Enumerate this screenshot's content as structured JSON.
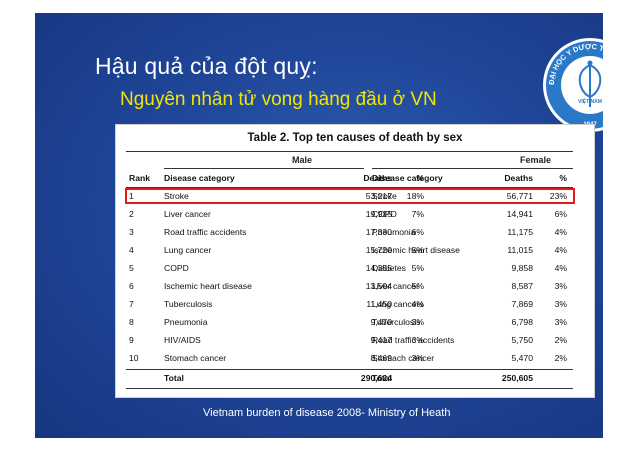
{
  "slide": {
    "title": "Hậu quả của đột quỵ:",
    "subtitle": "Nguyên nhân tử vong hàng đầu ở VN",
    "logo_text": "ĐẠI HỌC Y DƯỢC THÀNH PHỐ HỒ CHÍ MINH",
    "logo_country": "VIỆT NAM",
    "logo_year": "1947",
    "footer": "Vietnam burden of disease 2008- Ministry of Heath"
  },
  "table": {
    "title": "Table 2. Top ten causes of death by sex",
    "group_male": "Male",
    "group_female": "Female",
    "headers": {
      "rank": "Rank",
      "category_male": "Disease category",
      "deaths_male": "Deaths",
      "pct_male": "%",
      "category_female": "Disease category",
      "deaths_female": "Deaths",
      "pct_female": "%"
    },
    "rows": [
      {
        "rank": "1",
        "male_cat": "Stroke",
        "male_deaths": "53,217",
        "male_pct": "18%",
        "female_cat": "Stroke",
        "female_deaths": "56,771",
        "female_pct": "23%"
      },
      {
        "rank": "2",
        "male_cat": "Liver cancer",
        "male_deaths": "19,915",
        "male_pct": "7%",
        "female_cat": "COPD",
        "female_deaths": "14,941",
        "female_pct": "6%"
      },
      {
        "rank": "3",
        "male_cat": "Road traffic accidents",
        "male_deaths": "17,330",
        "male_pct": "6%",
        "female_cat": "Pneumonia",
        "female_deaths": "11,175",
        "female_pct": "4%"
      },
      {
        "rank": "4",
        "male_cat": "Lung cancer",
        "male_deaths": "15,720",
        "male_pct": "5%",
        "female_cat": "Ischemic heart disease",
        "female_deaths": "11,015",
        "female_pct": "4%"
      },
      {
        "rank": "5",
        "male_cat": "COPD",
        "male_deaths": "14,355",
        "male_pct": "5%",
        "female_cat": "Diabetes",
        "female_deaths": "9,858",
        "female_pct": "4%"
      },
      {
        "rank": "6",
        "male_cat": "Ischemic heart disease",
        "male_deaths": "13,504",
        "male_pct": "5%",
        "female_cat": "Liver cancer",
        "female_deaths": "8,587",
        "female_pct": "3%"
      },
      {
        "rank": "7",
        "male_cat": "Tuberculosis",
        "male_deaths": "11,450",
        "male_pct": "4%",
        "female_cat": "Lung cancers",
        "female_deaths": "7,869",
        "female_pct": "3%"
      },
      {
        "rank": "8",
        "male_cat": "Pneumonia",
        "male_deaths": "9,470",
        "male_pct": "3%",
        "female_cat": "Tuberculosis",
        "female_deaths": "6,798",
        "female_pct": "3%"
      },
      {
        "rank": "9",
        "male_cat": "HIV/AIDS",
        "male_deaths": "9,417",
        "male_pct": "3%",
        "female_cat": "Road traffic accidents",
        "female_deaths": "5,750",
        "female_pct": "2%"
      },
      {
        "rank": "10",
        "male_cat": "Stomach cancer",
        "male_deaths": "8,469",
        "male_pct": "3%",
        "female_cat": "Stomach cancer",
        "female_deaths": "5,470",
        "female_pct": "2%"
      }
    ],
    "total": {
      "label_male": "Total",
      "deaths_male": "290,624",
      "label_female": "Total",
      "deaths_female": "250,605"
    }
  },
  "colors": {
    "background": "#20479a",
    "title": "#ffffff",
    "subtitle": "#f2e600",
    "highlight": "#e31a1a"
  }
}
